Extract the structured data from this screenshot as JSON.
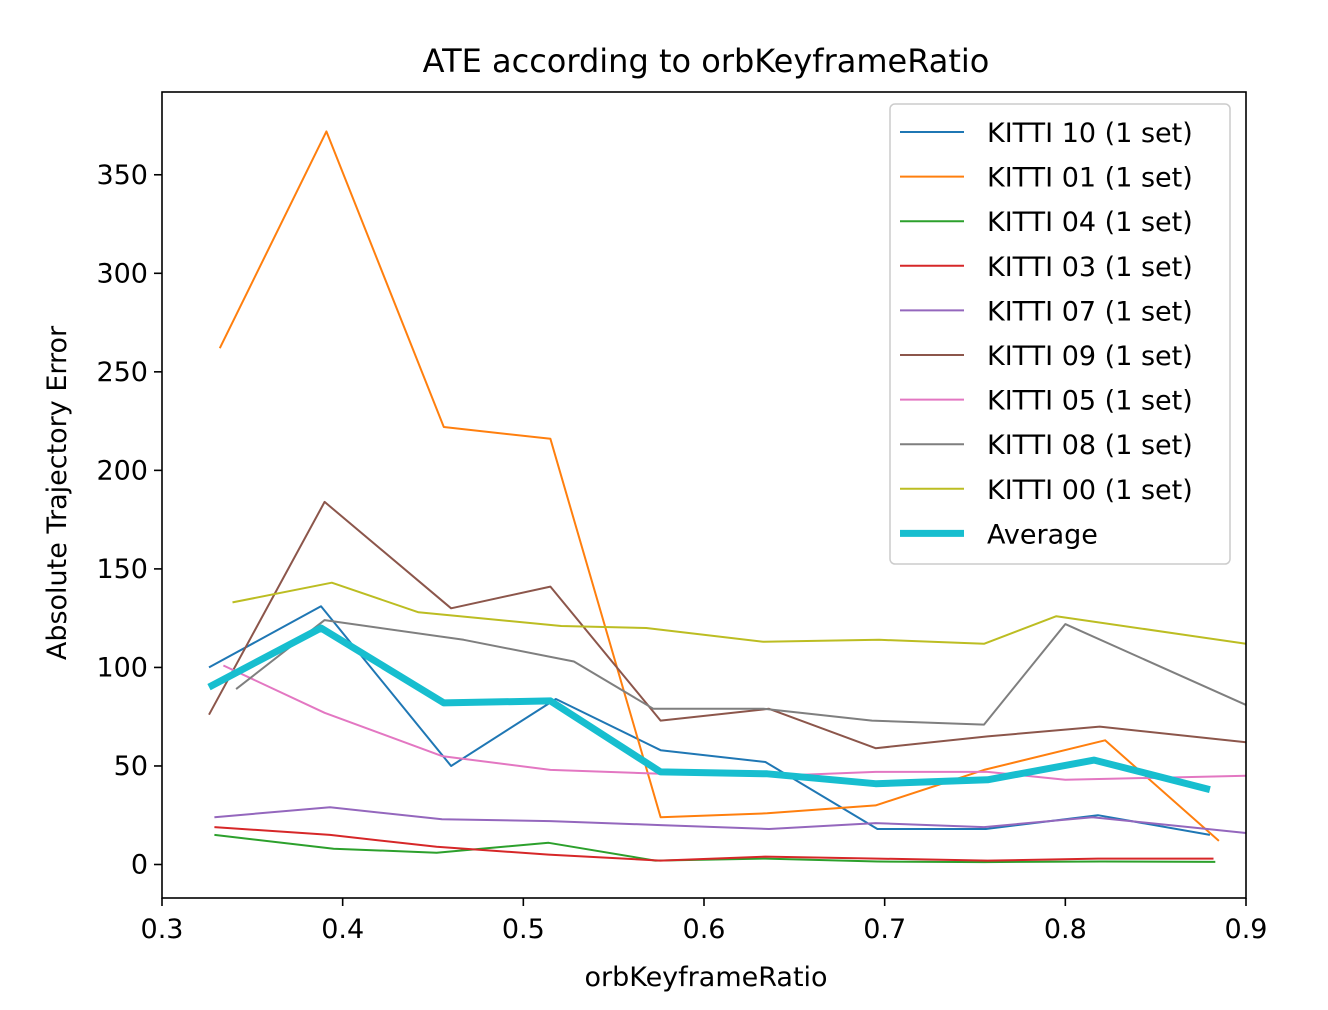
{
  "chart_data": {
    "type": "line",
    "title": "ATE according to orbKeyframeRatio",
    "xlabel": "orbKeyframeRatio",
    "ylabel": "Absolute Trajectory Error",
    "xlim": [
      0.3,
      0.9
    ],
    "ylim": [
      -17,
      392
    ],
    "xticks": [
      0.3,
      0.4,
      0.5,
      0.6,
      0.7,
      0.8,
      0.9
    ],
    "xtick_labels": [
      "0.3",
      "0.4",
      "0.5",
      "0.6",
      "0.7",
      "0.8",
      "0.9"
    ],
    "yticks": [
      0,
      50,
      100,
      150,
      200,
      250,
      300,
      350
    ],
    "ytick_labels": [
      "0",
      "50",
      "100",
      "150",
      "200",
      "250",
      "300",
      "350"
    ],
    "grid": false,
    "legend_position": "top-right",
    "series": [
      {
        "name": "KITTI 10 (1 set)",
        "color": "#1f77b4",
        "width": 2,
        "x": [
          0.326,
          0.388,
          0.46,
          0.518,
          0.576,
          0.634,
          0.696,
          0.756,
          0.818,
          0.88
        ],
        "y": [
          100,
          131,
          50,
          84,
          58,
          52,
          18,
          18,
          25,
          15
        ]
      },
      {
        "name": "KITTI 01 (1 set)",
        "color": "#ff7f0e",
        "width": 2,
        "x": [
          0.332,
          0.391,
          0.456,
          0.515,
          0.576,
          0.635,
          0.695,
          0.755,
          0.822,
          0.885
        ],
        "y": [
          262,
          372,
          222,
          216,
          24,
          26,
          30,
          48,
          63,
          12
        ]
      },
      {
        "name": "KITTI 04 (1 set)",
        "color": "#2ca02c",
        "width": 2,
        "x": [
          0.329,
          0.395,
          0.452,
          0.514,
          0.573,
          0.634,
          0.696,
          0.755,
          0.82,
          0.883
        ],
        "y": [
          15,
          8,
          6,
          11,
          2,
          3,
          1.5,
          1.2,
          1.5,
          1.3
        ]
      },
      {
        "name": "KITTI 03 (1 set)",
        "color": "#d62728",
        "width": 2,
        "x": [
          0.329,
          0.393,
          0.452,
          0.514,
          0.576,
          0.634,
          0.696,
          0.757,
          0.818,
          0.882
        ],
        "y": [
          19,
          15,
          9,
          5,
          2,
          4,
          3,
          2,
          3,
          3
        ]
      },
      {
        "name": "KITTI 07 (1 set)",
        "color": "#9467bd",
        "width": 2,
        "x": [
          0.329,
          0.393,
          0.455,
          0.515,
          0.576,
          0.636,
          0.695,
          0.755,
          0.815,
          0.9
        ],
        "y": [
          24,
          29,
          23,
          22,
          20,
          18,
          21,
          19,
          24,
          16
        ]
      },
      {
        "name": "KITTI 09 (1 set)",
        "color": "#8c564b",
        "width": 2,
        "x": [
          0.326,
          0.39,
          0.46,
          0.515,
          0.576,
          0.636,
          0.695,
          0.757,
          0.819,
          0.9
        ],
        "y": [
          76,
          184,
          130,
          141,
          73,
          79,
          59,
          65,
          70,
          62
        ]
      },
      {
        "name": "KITTI 05 (1 set)",
        "color": "#e377c2",
        "width": 2,
        "x": [
          0.334,
          0.39,
          0.455,
          0.515,
          0.576,
          0.64,
          0.695,
          0.757,
          0.8,
          0.9
        ],
        "y": [
          101,
          77,
          55,
          48,
          46,
          45,
          47,
          47,
          43,
          45
        ]
      },
      {
        "name": "KITTI 08 (1 set)",
        "color": "#7f7f7f",
        "width": 2,
        "x": [
          0.341,
          0.39,
          0.467,
          0.528,
          0.572,
          0.633,
          0.693,
          0.755,
          0.8,
          0.9
        ],
        "y": [
          89,
          124,
          114,
          103,
          79,
          79,
          73,
          71,
          122,
          81
        ]
      },
      {
        "name": "KITTI 00 (1 set)",
        "color": "#bcbd22",
        "width": 2,
        "x": [
          0.339,
          0.394,
          0.442,
          0.521,
          0.568,
          0.633,
          0.697,
          0.755,
          0.795,
          0.9
        ],
        "y": [
          133,
          143,
          128,
          121,
          120,
          113,
          114,
          112,
          126,
          112
        ]
      },
      {
        "name": "Average",
        "color": "#17becf",
        "width": 7,
        "x": [
          0.326,
          0.388,
          0.456,
          0.515,
          0.576,
          0.635,
          0.695,
          0.757,
          0.816,
          0.88
        ],
        "y": [
          90,
          120,
          82,
          83,
          47,
          46,
          41,
          43,
          53,
          38
        ]
      }
    ]
  }
}
